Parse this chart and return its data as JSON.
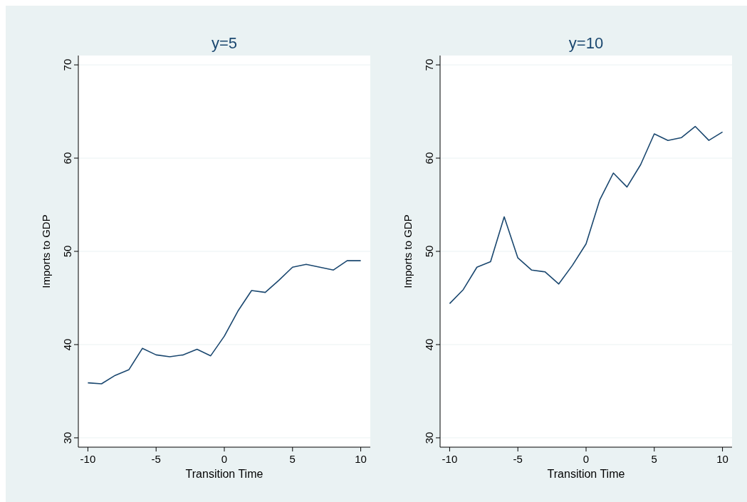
{
  "chart_data": [
    {
      "type": "line",
      "title": "y=5",
      "xlabel": "Transition Time",
      "ylabel": "Imports to GDP",
      "x": [
        -10,
        -9,
        -8,
        -7,
        -6,
        -5,
        -4,
        -3,
        -2,
        -1,
        0,
        1,
        2,
        3,
        4,
        5,
        6,
        7,
        8,
        9,
        10
      ],
      "series": [
        {
          "color": "#1a476f",
          "values": [
            35.9,
            35.8,
            36.7,
            37.3,
            39.6,
            38.9,
            38.7,
            38.9,
            39.5,
            38.8,
            40.9,
            43.6,
            45.8,
            45.6,
            46.9,
            48.3,
            48.6,
            48.3,
            48.0,
            49.0,
            49.0
          ]
        }
      ],
      "xlim": [
        -10.7,
        10.7
      ],
      "xticks": [
        -10,
        -5,
        0,
        5,
        10
      ],
      "ylim": [
        29,
        71
      ],
      "yticks": [
        30,
        40,
        50,
        60,
        70
      ],
      "grid": "y"
    },
    {
      "type": "line",
      "title": "y=10",
      "xlabel": "Transition Time",
      "ylabel": "Imports to GDP",
      "x": [
        -10,
        -9,
        -8,
        -7,
        -6,
        -5,
        -4,
        -3,
        -2,
        -1,
        0,
        1,
        2,
        3,
        4,
        5,
        6,
        7,
        8,
        9,
        10
      ],
      "series": [
        {
          "color": "#1a476f",
          "values": [
            44.4,
            45.9,
            48.3,
            48.9,
            53.7,
            49.3,
            48.0,
            47.8,
            46.5,
            48.5,
            50.8,
            55.5,
            58.4,
            56.9,
            59.3,
            62.6,
            61.9,
            62.2,
            63.4,
            61.9,
            62.8
          ]
        }
      ],
      "xlim": [
        -10.7,
        10.7
      ],
      "xticks": [
        -10,
        -5,
        0,
        5,
        10
      ],
      "ylim": [
        29,
        71
      ],
      "yticks": [
        30,
        40,
        50,
        60,
        70
      ],
      "grid": "y"
    }
  ]
}
